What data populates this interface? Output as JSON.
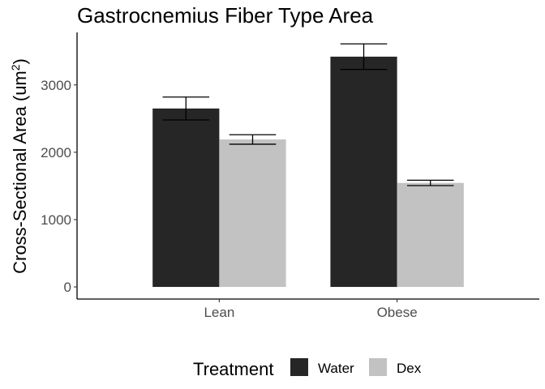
{
  "chart_data": {
    "type": "bar",
    "title": "Gastrocnemius Fiber Type Area",
    "xlabel": "",
    "ylabel": "Cross-Sectional Area (um²)",
    "ylabel_base": "Cross-Sectional Area (um",
    "ylabel_sup": "2",
    "ylabel_close": ")",
    "categories": [
      "Lean",
      "Obese"
    ],
    "series": [
      {
        "name": "Water",
        "color": "#262626",
        "values": [
          2650,
          3420
        ],
        "error": [
          170,
          190
        ]
      },
      {
        "name": "Dex",
        "color": "#c2c2c2",
        "values": [
          2190,
          1545
        ],
        "error": [
          70,
          40
        ]
      }
    ],
    "ylim": [
      -180,
      3780
    ],
    "yticks": [
      0,
      1000,
      2000,
      3000
    ],
    "grid": false,
    "legend": {
      "title": "Treatment",
      "position": "bottom"
    }
  }
}
